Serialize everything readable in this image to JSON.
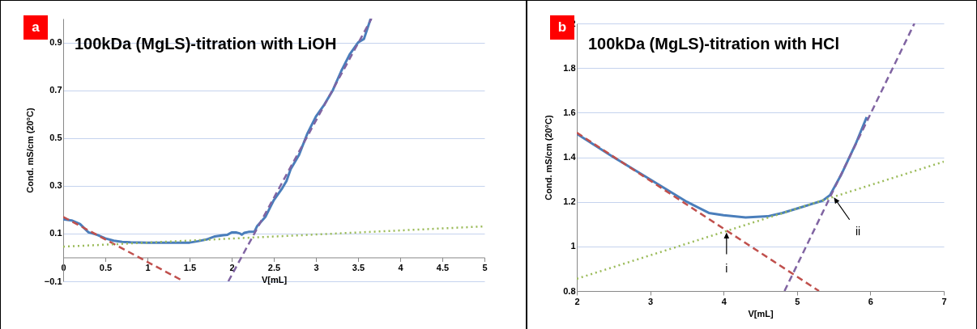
{
  "chart_data": [
    {
      "type": "line",
      "title": "100kDa (MgLS)-titration with LiOH",
      "xlabel": "V[mL]",
      "ylabel": "Cond. mS/cm (20°C)",
      "annotations": [
        "a"
      ],
      "xlim": [
        0,
        5
      ],
      "xticks": [
        0,
        0.5,
        1,
        1.5,
        2,
        2.5,
        3,
        3.5,
        4,
        4.5,
        5
      ],
      "ylim": [
        -0.1,
        1.0
      ],
      "yticks": [
        -0.1,
        0.1,
        0.3,
        0.5,
        0.7,
        0.9
      ],
      "grid": "y",
      "marker": "none",
      "series": [
        {
          "color": "#4a7ebb",
          "line_style": "solid",
          "x": [
            0,
            0.1,
            0.2,
            0.3,
            0.4,
            0.5,
            0.6,
            0.7,
            0.8,
            1,
            1.5,
            1.6,
            1.7,
            1.8,
            1.9,
            1.95,
            2.0,
            2.05,
            2.1,
            2.12,
            2.15,
            2.2,
            2.27,
            2.3,
            2.4,
            2.5,
            2.6,
            2.65,
            2.7,
            2.8,
            2.9,
            3.0,
            3.1,
            3.2,
            3.3,
            3.4,
            3.5,
            3.57,
            3.65
          ],
          "values": [
            0.16,
            0.155,
            0.14,
            0.105,
            0.095,
            0.08,
            0.07,
            0.065,
            0.063,
            0.062,
            0.062,
            0.068,
            0.075,
            0.088,
            0.093,
            0.095,
            0.105,
            0.105,
            0.1,
            0.095,
            0.103,
            0.107,
            0.108,
            0.13,
            0.17,
            0.24,
            0.29,
            0.32,
            0.37,
            0.43,
            0.52,
            0.59,
            0.64,
            0.7,
            0.78,
            0.85,
            0.9,
            0.915,
            1.0
          ]
        },
        {
          "type": "line",
          "color": "#c0504d",
          "line_style": "dashed",
          "x": [
            0,
            1.43
          ],
          "values": [
            0.17,
            -0.1
          ]
        },
        {
          "type": "line",
          "color": "#8064a2",
          "line_style": "dashed",
          "x": [
            1.96,
            3.66
          ],
          "values": [
            -0.1,
            1.0
          ]
        },
        {
          "type": "line",
          "color": "#9bbb59",
          "line_style": "dotted",
          "x": [
            0,
            5
          ],
          "values": [
            0.045,
            0.13
          ]
        }
      ]
    },
    {
      "type": "line",
      "title": "100kDa (MgLS)-titration with HCl",
      "xlabel": "V[mL]",
      "ylabel": "Cond. mS/cm (20°C)",
      "annotations": [
        "b",
        "i",
        "ii"
      ],
      "xlim": [
        2,
        7
      ],
      "xticks": [
        2,
        3,
        4,
        5,
        6,
        7
      ],
      "ylim": [
        0.8,
        2
      ],
      "yticks": [
        0.8,
        1,
        1.2,
        1.4,
        1.6,
        1.8,
        2
      ],
      "grid": "y",
      "marker": "none",
      "series": [
        {
          "color": "#4a7ebb",
          "line_style": "solid",
          "x": [
            2,
            2.5,
            3,
            3.5,
            3.8,
            4,
            4.3,
            4.6,
            4.8,
            5,
            5.2,
            5.35,
            5.45,
            5.6,
            5.8,
            5.95
          ],
          "values": [
            1.505,
            1.4,
            1.3,
            1.2,
            1.15,
            1.14,
            1.13,
            1.135,
            1.15,
            1.17,
            1.19,
            1.205,
            1.23,
            1.32,
            1.46,
            1.58
          ]
        },
        {
          "type": "line",
          "color": "#c0504d",
          "line_style": "dashed",
          "x": [
            2,
            5.3
          ],
          "values": [
            1.51,
            0.8
          ]
        },
        {
          "type": "line",
          "color": "#8064a2",
          "line_style": "dashed",
          "x": [
            4.83,
            6.6
          ],
          "values": [
            0.8,
            2.0
          ]
        },
        {
          "type": "line",
          "color": "#9bbb59",
          "line_style": "dotted",
          "x": [
            2,
            7
          ],
          "values": [
            0.855,
            1.38
          ]
        }
      ]
    }
  ]
}
